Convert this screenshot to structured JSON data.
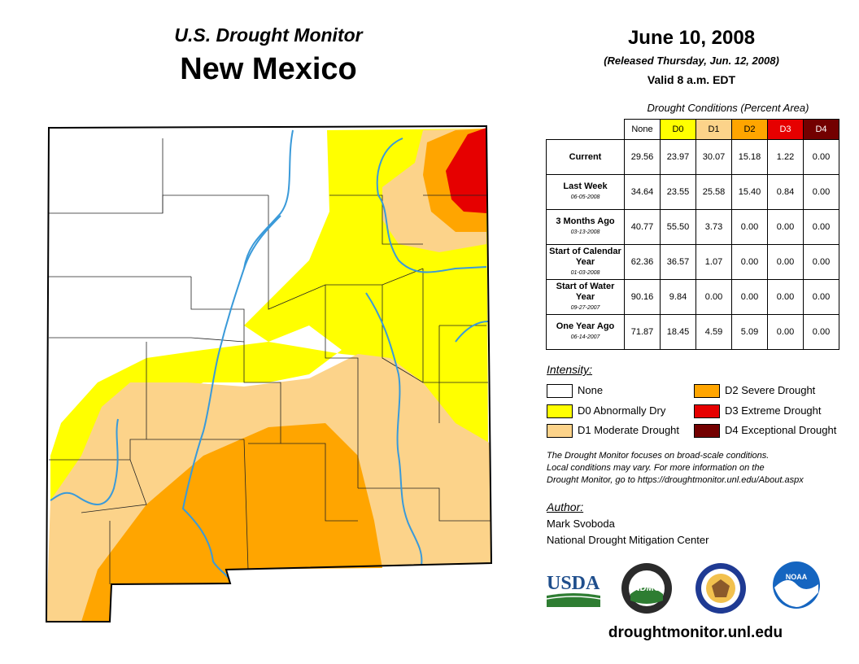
{
  "header": {
    "subtitle": "U.S. Drought Monitor",
    "state": "New Mexico",
    "date": "June 10, 2008",
    "released": "(Released Thursday, Jun. 12, 2008)",
    "valid": "Valid 8 a.m. EDT"
  },
  "conditions_table": {
    "caption": "Drought Conditions (Percent Area)",
    "columns": [
      "None",
      "D0",
      "D1",
      "D2",
      "D3",
      "D4"
    ],
    "rows": [
      {
        "label": "Current",
        "date": "",
        "values": [
          "29.56",
          "23.97",
          "30.07",
          "15.18",
          "1.22",
          "0.00"
        ]
      },
      {
        "label": "Last Week",
        "date": "06-05-2008",
        "values": [
          "34.64",
          "23.55",
          "25.58",
          "15.40",
          "0.84",
          "0.00"
        ]
      },
      {
        "label": "3 Months Ago",
        "date": "03-13-2008",
        "values": [
          "40.77",
          "55.50",
          "3.73",
          "0.00",
          "0.00",
          "0.00"
        ]
      },
      {
        "label": "Start of Calendar Year",
        "date": "01-03-2008",
        "values": [
          "62.36",
          "36.57",
          "1.07",
          "0.00",
          "0.00",
          "0.00"
        ]
      },
      {
        "label": "Start of Water Year",
        "date": "09-27-2007",
        "values": [
          "90.16",
          "9.84",
          "0.00",
          "0.00",
          "0.00",
          "0.00"
        ]
      },
      {
        "label": "One Year Ago",
        "date": "06-14-2007",
        "values": [
          "71.87",
          "18.45",
          "4.59",
          "5.09",
          "0.00",
          "0.00"
        ]
      }
    ]
  },
  "legend": {
    "title": "Intensity:",
    "items": [
      {
        "label": "None",
        "color": "#ffffff"
      },
      {
        "label": "D0 Abnormally Dry",
        "color": "#ffff00"
      },
      {
        "label": "D1 Moderate Drought",
        "color": "#fcd38a"
      },
      {
        "label": "D2 Severe Drought",
        "color": "#ffa500"
      },
      {
        "label": "D3 Extreme Drought",
        "color": "#e60000"
      },
      {
        "label": "D4 Exceptional Drought",
        "color": "#730000"
      }
    ]
  },
  "note": {
    "line1": "The Drought Monitor focuses on broad-scale conditions.",
    "line2": "Local conditions may vary. For more information on the",
    "line3": "Drought Monitor, go to https://droughtmonitor.unl.edu/About.aspx"
  },
  "author": {
    "title": "Author:",
    "name": "Mark Svoboda",
    "org": "National Drought Mitigation Center"
  },
  "logos": {
    "usda": "USDA",
    "ndmc": "NDMC",
    "noaa": "NOAA"
  },
  "footer": {
    "url": "droughtmonitor.unl.edu"
  },
  "colors": {
    "none": "#ffffff",
    "d0": "#ffff00",
    "d1": "#fcd38a",
    "d2": "#ffa500",
    "d3": "#e60000",
    "d4": "#730000",
    "river": "#3a9ad9"
  }
}
